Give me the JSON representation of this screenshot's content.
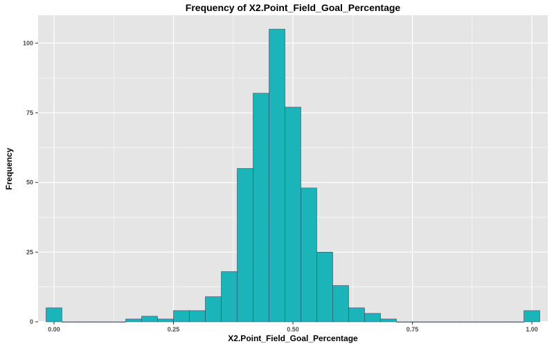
{
  "chart_data": {
    "type": "bar",
    "title": "Frequency of X2.Point_Field_Goal_Percentage",
    "xlabel": "X2.Point_Field_Goal_Percentage",
    "ylabel": "Frequency",
    "xlim": [
      -0.0333,
      1.0333
    ],
    "ylim": [
      0,
      110
    ],
    "x_ticks": [
      0,
      0.25,
      0.5,
      0.75,
      1.0
    ],
    "x_tick_labels": [
      "0.00",
      "0.25",
      "0.50",
      "0.75",
      "1.00"
    ],
    "y_ticks": [
      0,
      25,
      50,
      75,
      100
    ],
    "y_tick_labels": [
      "0",
      "25",
      "50",
      "75",
      "100"
    ],
    "bin_width": 0.0333,
    "bin_centers": [
      0.0,
      0.0333,
      0.0667,
      0.1,
      0.1333,
      0.1667,
      0.2,
      0.2333,
      0.2667,
      0.3,
      0.3333,
      0.3667,
      0.4,
      0.4333,
      0.4667,
      0.5,
      0.5333,
      0.5667,
      0.6,
      0.6333,
      0.6667,
      0.7,
      0.7333,
      0.7667,
      0.8,
      0.8333,
      0.8667,
      0.9,
      0.9333,
      0.9667,
      1.0
    ],
    "values": [
      5,
      0,
      0,
      0,
      0,
      1,
      2,
      1,
      4,
      4,
      9,
      18,
      55,
      82,
      105,
      77,
      48,
      25,
      13,
      5,
      3,
      1,
      0,
      0,
      0,
      0,
      0,
      0,
      0,
      0,
      4
    ],
    "bar_fill": "#1bb5b9",
    "bar_stroke": "#2f4f5f",
    "panel_bg": "#e5e5e5",
    "grid": true,
    "grid_color": "#ffffff"
  }
}
